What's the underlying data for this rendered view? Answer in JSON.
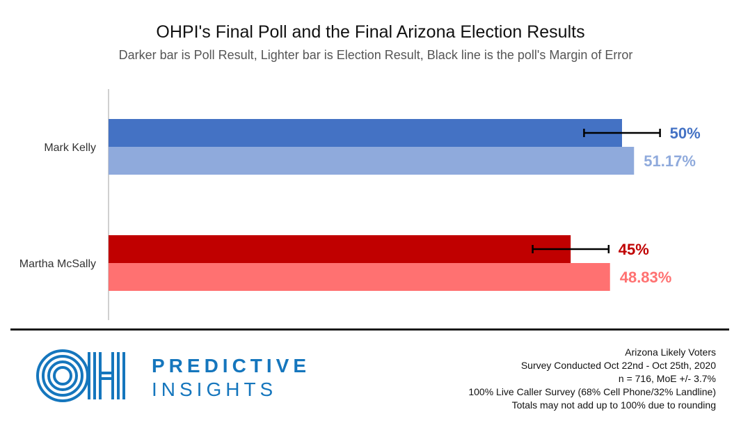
{
  "chart_data": {
    "type": "bar",
    "orientation": "horizontal",
    "title": "OHPI's Final Poll and the Final Arizona Election Results",
    "subtitle": "Darker bar is Poll Result, Lighter bar is Election Result, Black line is the poll's Margin of Error",
    "categories": [
      "Mark Kelly",
      "Martha McSally"
    ],
    "series": [
      {
        "name": "Poll Result",
        "values": [
          50,
          45
        ],
        "labels": [
          "50%",
          "45%"
        ],
        "colors": [
          "#4472c4",
          "#c00000"
        ],
        "moe": 3.7
      },
      {
        "name": "Election Result",
        "values": [
          51.17,
          48.83
        ],
        "labels": [
          "51.17%",
          "48.83%"
        ],
        "colors": [
          "#8faadc",
          "#ff7171"
        ]
      }
    ],
    "xlim": [
      0,
      55
    ],
    "grid": false,
    "legend": "none"
  },
  "branding": {
    "logo_text": "OH",
    "line1": "PREDICTIVE",
    "line2": "INSIGHTS",
    "color": "#1576bd"
  },
  "notes": [
    "Arizona Likely Voters",
    "Survey Conducted Oct 22nd - Oct 25th, 2020",
    "n = 716, MoE +/- 3.7%",
    "100% Live Caller Survey (68% Cell Phone/32% Landline)",
    "Totals may not add up to 100% due to rounding"
  ]
}
